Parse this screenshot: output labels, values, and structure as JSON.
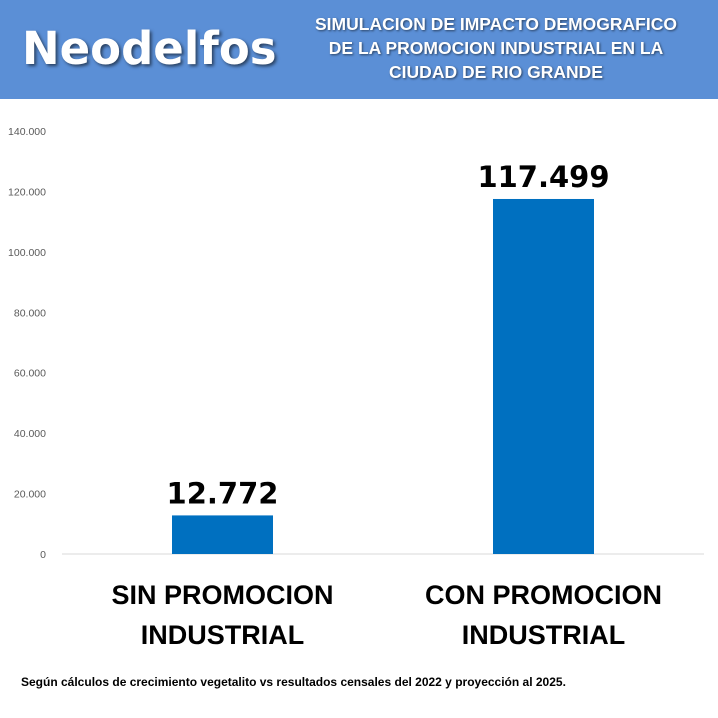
{
  "header": {
    "brand": "Neodelfos",
    "title_lines": [
      "SIMULACION DE IMPACTO DEMOGRAFICO",
      "DE LA PROMOCION INDUSTRIAL EN LA",
      "CIUDAD DE RIO GRANDE"
    ],
    "background_color": "#5b8fd6"
  },
  "chart_data": {
    "type": "bar",
    "categories": [
      [
        "SIN PROMOCION",
        "INDUSTRIAL"
      ],
      [
        "CON PROMOCION",
        "INDUSTRIAL"
      ]
    ],
    "values": [
      12772,
      117499
    ],
    "data_labels": [
      "12.772",
      "117.499"
    ],
    "ylim": [
      0,
      140000
    ],
    "yticks": [
      0,
      20000,
      40000,
      60000,
      80000,
      100000,
      120000,
      140000
    ],
    "ytick_labels": [
      "0",
      "20.000",
      "40.000",
      "60.000",
      "80.000",
      "100.000",
      "120.000",
      "140.000"
    ],
    "grid": false,
    "bar_color": "#0070c0"
  },
  "footnote": "Según cálculos de crecimiento vegetalito vs resultados censales del 2022  y proyección al 2025."
}
